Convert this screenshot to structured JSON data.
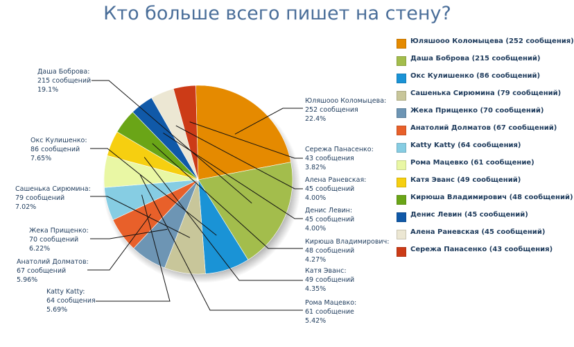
{
  "chart_data": {
    "type": "pie",
    "title": "Кто больше всего пишет на стену?",
    "slices": [
      {
        "name": "Юляшооо Коломыцева",
        "value": 252,
        "count_text": "252 сообщения",
        "percent": "22.4%",
        "legend": "Юляшооо Коломыцева (252 сообщения)",
        "color": "#e58a00"
      },
      {
        "name": "Даша Боброва",
        "value": 215,
        "count_text": "215 сообщений",
        "percent": "19.1%",
        "legend": "Даша Боброва (215 сообщений)",
        "color": "#a3bd4c"
      },
      {
        "name": "Окс Кулишенко",
        "value": 86,
        "count_text": "86 сообщений",
        "percent": "7.65%",
        "legend": "Окс Кулишенко (86 сообщений)",
        "color": "#1a93d6"
      },
      {
        "name": "Сашенька Сирюмина",
        "value": 79,
        "count_text": "79 сообщений",
        "percent": "7.02%",
        "legend": "Сашенька Сирюмина (79 сообщений)",
        "color": "#c8c69a"
      },
      {
        "name": "Жека Прищенко",
        "value": 70,
        "count_text": "70 сообщений",
        "percent": "6.22%",
        "legend": "Жека Прищенко (70 сообщений)",
        "color": "#6d95b4"
      },
      {
        "name": "Анатолий Долматов",
        "value": 67,
        "count_text": "67 сообщений",
        "percent": "5.96%",
        "legend": "Анатолий Долматов (67 сообщений)",
        "color": "#e8602a"
      },
      {
        "name": "Katty Katty",
        "value": 64,
        "count_text": "64 сообщения",
        "percent": "5.69%",
        "legend": "Katty Katty (64 сообщения)",
        "color": "#86cde3"
      },
      {
        "name": "Рома Мацевко",
        "value": 61,
        "count_text": "61 сообщение",
        "percent": "5.42%",
        "legend": "Рома Мацевко (61 сообщение)",
        "color": "#e9f7a4"
      },
      {
        "name": "Катя Эванс",
        "value": 49,
        "count_text": "49 сообщений",
        "percent": "4.35%",
        "legend": "Катя Эванс (49 сообщений)",
        "color": "#f6cf10"
      },
      {
        "name": "Кирюша Владимирович",
        "value": 48,
        "count_text": "48 сообщений",
        "percent": "4.27%",
        "legend": "Кирюша Владимирович (48 сообщений)",
        "color": "#6aa517"
      },
      {
        "name": "Денис Левин",
        "value": 45,
        "count_text": "45 сообщений",
        "percent": "4.00%",
        "legend": "Денис Левин (45 сообщений)",
        "color": "#1059a8"
      },
      {
        "name": "Алена Раневская",
        "value": 45,
        "count_text": "45 сообщений",
        "percent": "4.00%",
        "legend": "Алена Раневская (45 сообщений)",
        "color": "#ece7d3"
      },
      {
        "name": "Сережа Панасенко",
        "value": 43,
        "count_text": "43 сообщения",
        "percent": "3.82%",
        "legend": "Сережа Панасенко (43 сообщения)",
        "color": "#cc3b17"
      }
    ],
    "legend_position": "right"
  }
}
